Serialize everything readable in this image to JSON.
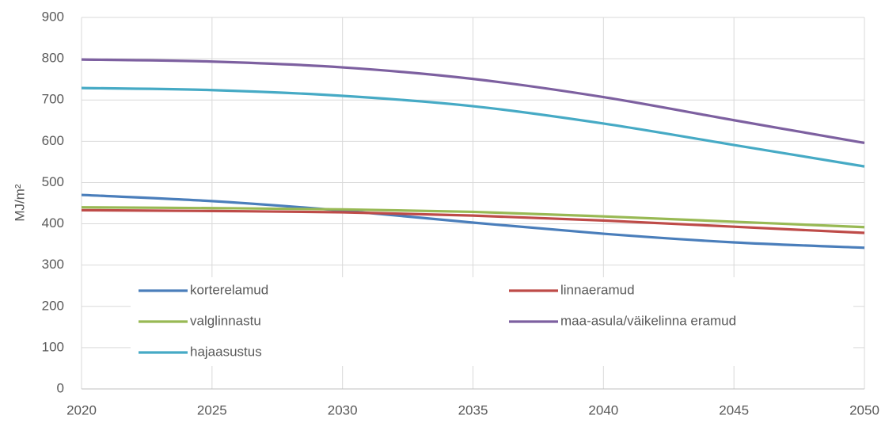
{
  "chart_data": {
    "type": "line",
    "y_label": "MJ/m²",
    "x": [
      2020,
      2025,
      2030,
      2035,
      2040,
      2045,
      2050
    ],
    "series": [
      {
        "name": "korterelamud",
        "color": "#4a7ebb",
        "values": [
          470,
          455,
          432,
          403,
          376,
          355,
          342
        ]
      },
      {
        "name": "linnaeramud",
        "color": "#be4b48",
        "values": [
          433,
          431,
          428,
          420,
          408,
          393,
          378
        ]
      },
      {
        "name": "valglinnastu",
        "color": "#98b954",
        "values": [
          440,
          438,
          435,
          429,
          418,
          405,
          392
        ]
      },
      {
        "name": "maa-asula/väikelinna eramud",
        "color": "#7d60a0",
        "values": [
          798,
          793,
          779,
          751,
          707,
          651,
          596
        ]
      },
      {
        "name": "hajaasustus",
        "color": "#46aac5",
        "values": [
          729,
          724,
          710,
          685,
          643,
          591,
          539
        ]
      }
    ],
    "xlim": [
      2020,
      2050
    ],
    "xticks": [
      2020,
      2025,
      2030,
      2035,
      2040,
      2045,
      2050
    ],
    "ylim": [
      0,
      900
    ],
    "yticks": [
      0,
      100,
      200,
      300,
      400,
      500,
      600,
      700,
      800,
      900
    ],
    "grid": true
  }
}
